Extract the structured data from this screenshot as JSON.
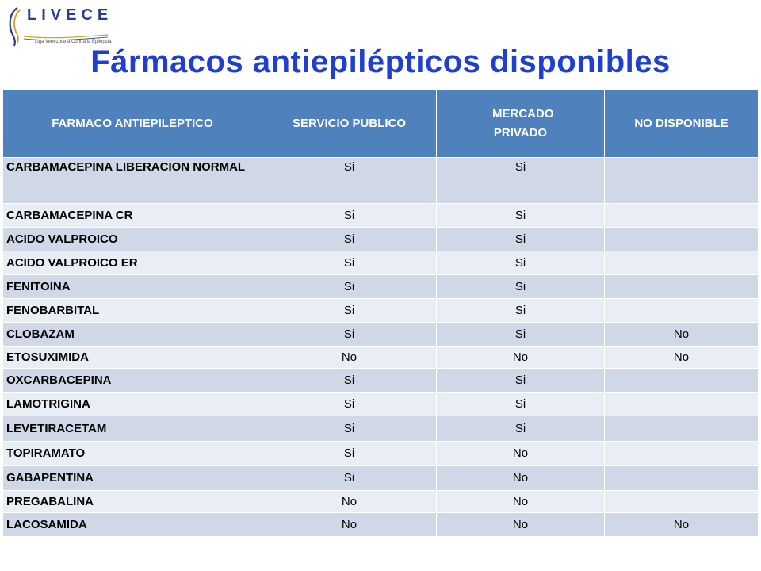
{
  "logo": {
    "wordmark": "LIVECE",
    "tagline": "Liga Venezolana Contra la Epilepsia"
  },
  "title": "Fármacos antiepilépticos disponibles",
  "table": {
    "headers": [
      "FARMACO ANTIEPILEPTICO",
      "SERVICIO PUBLICO",
      "MERCADO PRIVADO",
      "NO DISPONIBLE"
    ],
    "rows": [
      {
        "farmaco": "CARBAMACEPINA LIBERACION NORMAL",
        "publico": "Si",
        "privado": "Si",
        "no_disponible": ""
      },
      {
        "farmaco": "CARBAMACEPINA CR",
        "publico": "Si",
        "privado": "Si",
        "no_disponible": ""
      },
      {
        "farmaco": "ACIDO VALPROICO",
        "publico": "Si",
        "privado": "Si",
        "no_disponible": ""
      },
      {
        "farmaco": "ACIDO VALPROICO ER",
        "publico": "Si",
        "privado": "Si",
        "no_disponible": ""
      },
      {
        "farmaco": "FENITOINA",
        "publico": "Si",
        "privado": "Si",
        "no_disponible": ""
      },
      {
        "farmaco": "FENOBARBITAL",
        "publico": "Si",
        "privado": "Si",
        "no_disponible": ""
      },
      {
        "farmaco": "CLOBAZAM",
        "publico": "Si",
        "privado": "Si",
        "no_disponible": "No"
      },
      {
        "farmaco": "ETOSUXIMIDA",
        "publico": "No",
        "privado": "No",
        "no_disponible": "No"
      },
      {
        "farmaco": "OXCARBACEPINA",
        "publico": "Si",
        "privado": "Si",
        "no_disponible": ""
      },
      {
        "farmaco": "LAMOTRIGINA",
        "publico": "Si",
        "privado": "Si",
        "no_disponible": ""
      },
      {
        "farmaco": "LEVETIRACETAM",
        "publico": "Si",
        "privado": "Si",
        "no_disponible": ""
      },
      {
        "farmaco": "TOPIRAMATO",
        "publico": "Si",
        "privado": "No",
        "no_disponible": ""
      },
      {
        "farmaco": "GABAPENTINA",
        "publico": "Si",
        "privado": "No",
        "no_disponible": ""
      },
      {
        "farmaco": "PREGABALINA",
        "publico": "No",
        "privado": "No",
        "no_disponible": ""
      },
      {
        "farmaco": "LACOSAMIDA",
        "publico": "No",
        "privado": "No",
        "no_disponible": "No"
      }
    ]
  },
  "colors": {
    "title": "#1e3fd0",
    "header_bg": "#4f81bd",
    "row_odd": "#d0d8e8",
    "row_even": "#e9edf4",
    "logo_blue": "#2d3b8f",
    "logo_gold": "#c9a227"
  }
}
